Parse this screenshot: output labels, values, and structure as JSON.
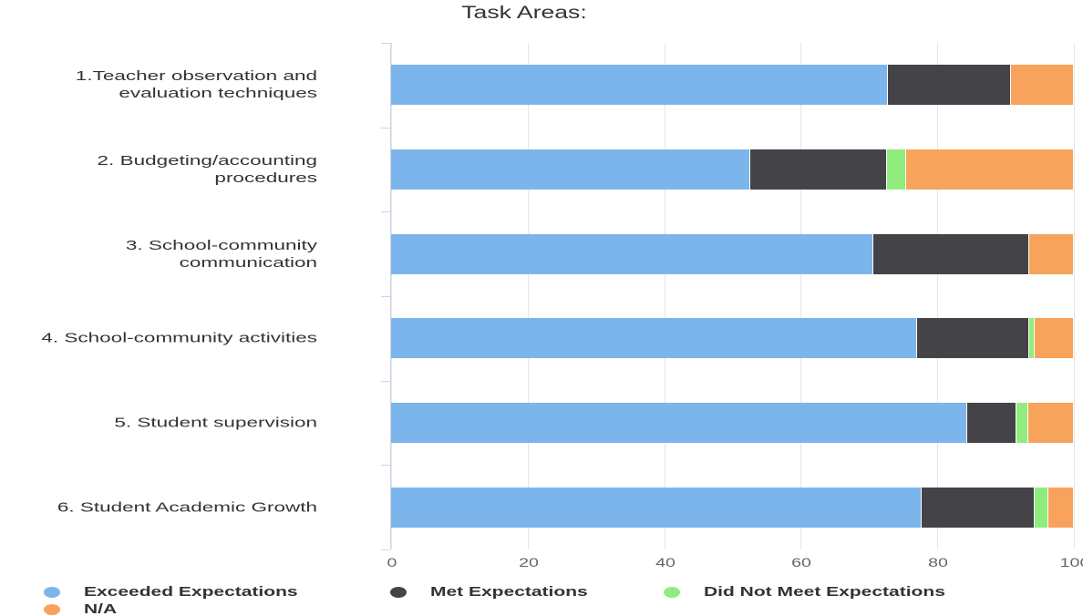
{
  "chart_data": {
    "type": "stacked-bar-horizontal",
    "title": "Task Areas:",
    "categories": [
      "1.Teacher observation and evaluation techniques",
      "2. Budgeting/accounting procedures",
      "3. School-community communication",
      "4. School-community activities",
      "5. Student supervision",
      "6. Student Academic Growth"
    ],
    "series": [
      {
        "name": "Exceeded Expectations",
        "color": "#7cb5ec",
        "values": [
          72.7,
          52.6,
          70.6,
          77.0,
          84.4,
          77.7
        ]
      },
      {
        "name": "Met Expectations",
        "color": "#434348",
        "values": [
          18.1,
          20.0,
          22.9,
          16.5,
          7.2,
          16.6
        ]
      },
      {
        "name": "Did Not Meet Expectations",
        "color": "#90ed7d",
        "values": [
          0,
          2.8,
          0,
          0.8,
          1.7,
          2.0
        ]
      },
      {
        "name": "N/A",
        "color": "#f7a35c",
        "values": [
          9.2,
          24.6,
          6.5,
          5.7,
          6.7,
          3.7
        ]
      }
    ],
    "xlim": [
      0,
      100
    ],
    "xticks": [
      0,
      20,
      40,
      60,
      80,
      100
    ],
    "grid": true,
    "legend": "bottom"
  }
}
